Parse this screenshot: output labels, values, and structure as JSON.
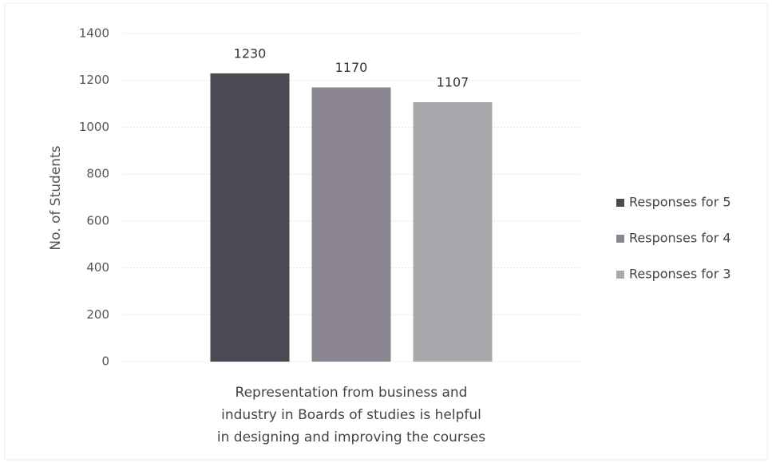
{
  "chart_data": {
    "type": "bar",
    "y_label": "No. of Students",
    "categories": [
      "Representation from business and industry in Boards of studies is helpful in designing and improving the courses"
    ],
    "series": [
      {
        "name": "Responses for 5",
        "color": "#4b4a52",
        "values": [
          1230
        ]
      },
      {
        "name": "Responses for 4",
        "color": "#8a8590",
        "values": [
          1170
        ]
      },
      {
        "name": "Responses for 3",
        "color": "#a9a9ad",
        "values": [
          1107
        ]
      }
    ],
    "ylim": [
      0,
      1400
    ],
    "yticks": [
      0,
      200,
      400,
      600,
      800,
      1000,
      1200,
      1400
    ],
    "grid": true,
    "legend": "right"
  }
}
